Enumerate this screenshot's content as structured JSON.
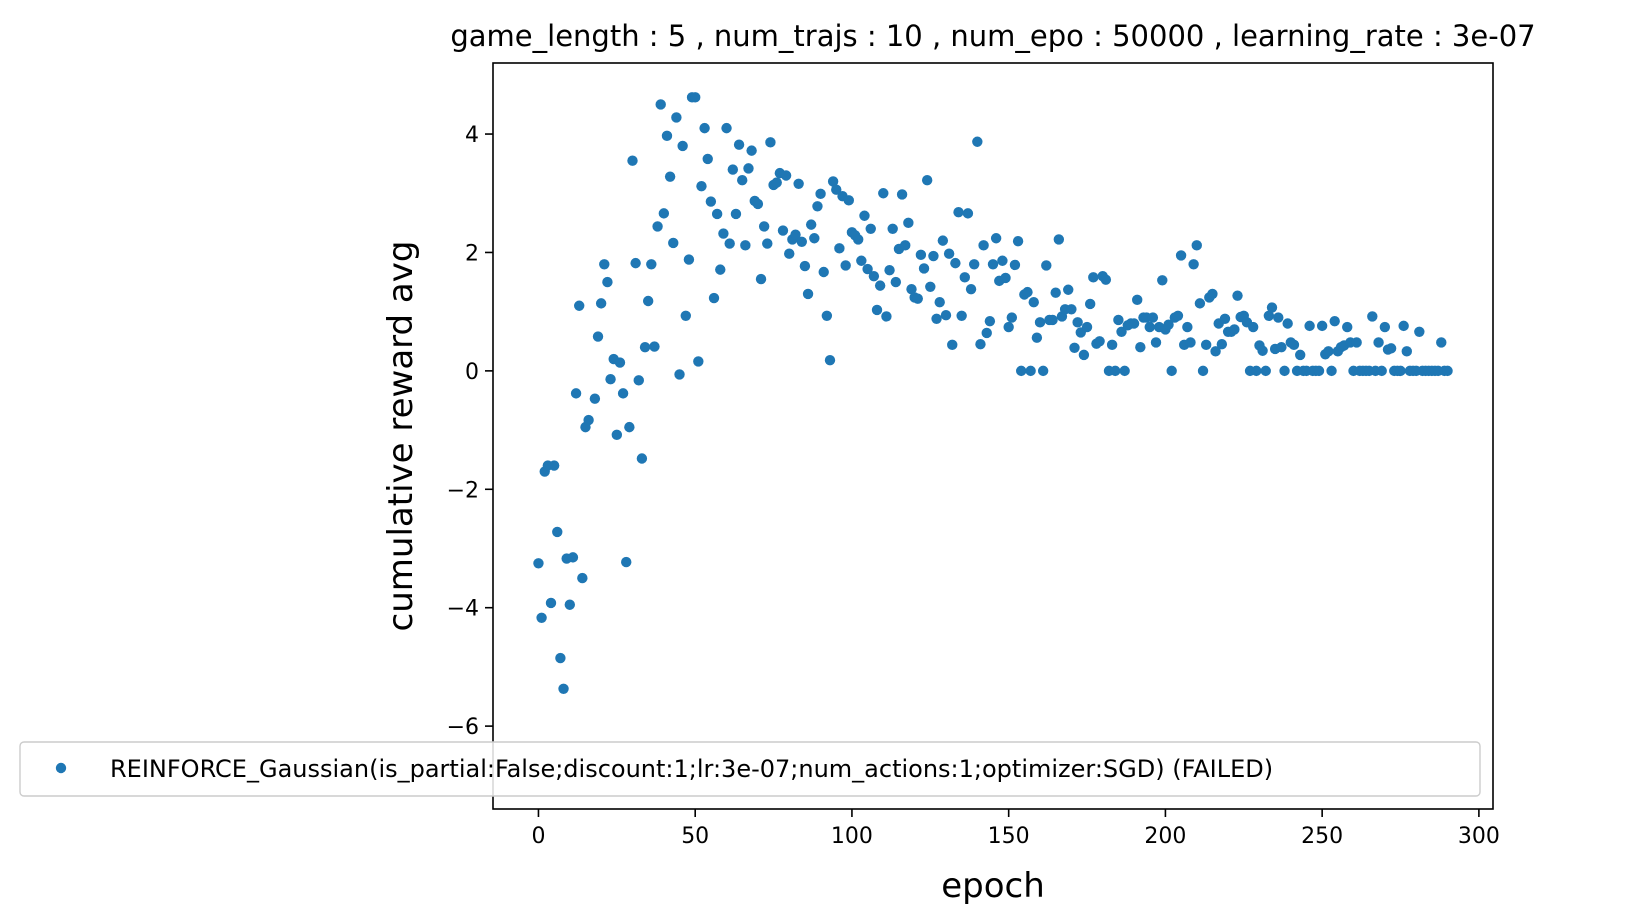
{
  "chart_data": {
    "type": "scatter",
    "title": "game_length : 5 , num_trajs : 10 , num_epo : 50000 , learning_rate : 3e-07",
    "xlabel": "epoch",
    "ylabel": "cumulative reward avg",
    "xlim": [
      -14.5,
      304.5
    ],
    "ylim": [
      -7.4,
      5.2
    ],
    "xticks": [
      0,
      50,
      100,
      150,
      200,
      250,
      300
    ],
    "yticks": [
      -6,
      -4,
      -2,
      0,
      2,
      4
    ],
    "xtick_labels": [
      "0",
      "50",
      "100",
      "150",
      "200",
      "250",
      "300"
    ],
    "ytick_labels": [
      "−6",
      "−4",
      "−2",
      "0",
      "2",
      "4"
    ],
    "grid": false,
    "legend_position": "lower-left",
    "series": [
      {
        "name": "REINFORCE_Gaussian(is_partial:False;discount:1;lr:3e-07;num_actions:1;optimizer:SGD) (FAILED)",
        "color": "#1f77b4",
        "points": [
          [
            0,
            -3.25
          ],
          [
            1,
            -4.17
          ],
          [
            2,
            -1.7
          ],
          [
            3,
            -1.6
          ],
          [
            4,
            -3.92
          ],
          [
            5,
            -1.6
          ],
          [
            6,
            -2.72
          ],
          [
            7,
            -4.85
          ],
          [
            8,
            -5.37
          ],
          [
            9,
            -3.17
          ],
          [
            10,
            -3.95
          ],
          [
            11,
            -3.15
          ],
          [
            12,
            -0.38
          ],
          [
            13,
            1.1
          ],
          [
            14,
            -3.5
          ],
          [
            15,
            -0.95
          ],
          [
            16,
            -0.83
          ],
          [
            18,
            -0.47
          ],
          [
            19,
            0.58
          ],
          [
            20,
            1.14
          ],
          [
            21,
            1.8
          ],
          [
            22,
            1.5
          ],
          [
            23,
            -0.14
          ],
          [
            24,
            0.2
          ],
          [
            25,
            -1.08
          ],
          [
            26,
            0.14
          ],
          [
            27,
            -0.38
          ],
          [
            28,
            -3.23
          ],
          [
            29,
            -0.95
          ],
          [
            30,
            3.55
          ],
          [
            31,
            1.82
          ],
          [
            32,
            -0.16
          ],
          [
            33,
            -1.48
          ],
          [
            34,
            0.4
          ],
          [
            35,
            1.18
          ],
          [
            36,
            1.8
          ],
          [
            37,
            0.41
          ],
          [
            38,
            2.44
          ],
          [
            39,
            4.5
          ],
          [
            40,
            2.66
          ],
          [
            41,
            3.97
          ],
          [
            42,
            3.28
          ],
          [
            43,
            2.16
          ],
          [
            44,
            4.28
          ],
          [
            45,
            -0.06
          ],
          [
            46,
            3.8
          ],
          [
            47,
            0.93
          ],
          [
            48,
            1.88
          ],
          [
            49,
            4.62
          ],
          [
            50,
            4.62
          ],
          [
            51,
            0.16
          ],
          [
            52,
            3.12
          ],
          [
            53,
            4.1
          ],
          [
            54,
            3.58
          ],
          [
            55,
            2.86
          ],
          [
            56,
            1.23
          ],
          [
            57,
            2.65
          ],
          [
            58,
            1.71
          ],
          [
            59,
            2.32
          ],
          [
            60,
            4.1
          ],
          [
            61,
            2.15
          ],
          [
            62,
            3.4
          ],
          [
            63,
            2.65
          ],
          [
            64,
            3.82
          ],
          [
            65,
            3.22
          ],
          [
            66,
            2.12
          ],
          [
            67,
            3.42
          ],
          [
            68,
            3.72
          ],
          [
            69,
            2.87
          ],
          [
            70,
            2.82
          ],
          [
            71,
            1.55
          ],
          [
            72,
            2.44
          ],
          [
            73,
            2.15
          ],
          [
            74,
            3.86
          ],
          [
            75,
            3.14
          ],
          [
            76,
            3.18
          ],
          [
            77,
            3.34
          ],
          [
            78,
            2.37
          ],
          [
            79,
            3.3
          ],
          [
            80,
            1.98
          ],
          [
            81,
            2.22
          ],
          [
            82,
            2.3
          ],
          [
            83,
            3.16
          ],
          [
            84,
            2.18
          ],
          [
            85,
            1.77
          ],
          [
            86,
            1.3
          ],
          [
            87,
            2.47
          ],
          [
            88,
            2.24
          ],
          [
            89,
            2.78
          ],
          [
            90,
            2.99
          ],
          [
            91,
            1.67
          ],
          [
            92,
            0.93
          ],
          [
            93,
            0.18
          ],
          [
            94,
            3.2
          ],
          [
            95,
            3.06
          ],
          [
            96,
            2.07
          ],
          [
            97,
            2.95
          ],
          [
            98,
            1.78
          ],
          [
            99,
            2.88
          ],
          [
            100,
            2.34
          ],
          [
            101,
            2.29
          ],
          [
            102,
            2.22
          ],
          [
            103,
            1.86
          ],
          [
            104,
            2.62
          ],
          [
            105,
            1.72
          ],
          [
            106,
            2.4
          ],
          [
            107,
            1.6
          ],
          [
            108,
            1.03
          ],
          [
            109,
            1.44
          ],
          [
            110,
            3.0
          ],
          [
            111,
            0.92
          ],
          [
            112,
            1.7
          ],
          [
            113,
            2.4
          ],
          [
            114,
            1.5
          ],
          [
            115,
            2.06
          ],
          [
            116,
            2.98
          ],
          [
            117,
            2.12
          ],
          [
            118,
            2.5
          ],
          [
            119,
            1.38
          ],
          [
            120,
            1.24
          ],
          [
            121,
            1.22
          ],
          [
            122,
            1.96
          ],
          [
            123,
            1.73
          ],
          [
            124,
            3.22
          ],
          [
            125,
            1.42
          ],
          [
            126,
            1.94
          ],
          [
            127,
            0.88
          ],
          [
            128,
            1.16
          ],
          [
            129,
            2.2
          ],
          [
            130,
            0.94
          ],
          [
            131,
            1.98
          ],
          [
            132,
            0.44
          ],
          [
            133,
            1.82
          ],
          [
            134,
            2.68
          ],
          [
            135,
            0.93
          ],
          [
            136,
            1.58
          ],
          [
            137,
            2.66
          ],
          [
            138,
            1.38
          ],
          [
            139,
            1.8
          ],
          [
            140,
            3.87
          ],
          [
            141,
            0.45
          ],
          [
            142,
            2.12
          ],
          [
            143,
            0.64
          ],
          [
            144,
            0.84
          ],
          [
            145,
            1.8
          ],
          [
            146,
            2.24
          ],
          [
            147,
            1.52
          ],
          [
            148,
            1.86
          ],
          [
            149,
            1.57
          ],
          [
            150,
            0.74
          ],
          [
            151,
            0.9
          ],
          [
            152,
            1.79
          ],
          [
            153,
            2.19
          ],
          [
            154,
            0.0
          ],
          [
            155,
            1.29
          ],
          [
            156,
            1.33
          ],
          [
            157,
            0.0
          ],
          [
            158,
            1.16
          ],
          [
            159,
            0.56
          ],
          [
            160,
            0.82
          ],
          [
            161,
            0.0
          ],
          [
            162,
            1.78
          ],
          [
            163,
            0.86
          ],
          [
            164,
            0.86
          ],
          [
            165,
            1.32
          ],
          [
            166,
            2.22
          ],
          [
            167,
            0.92
          ],
          [
            168,
            1.04
          ],
          [
            169,
            1.37
          ],
          [
            170,
            1.04
          ],
          [
            171,
            0.39
          ],
          [
            172,
            0.82
          ],
          [
            173,
            0.65
          ],
          [
            174,
            0.27
          ],
          [
            175,
            0.74
          ],
          [
            176,
            1.13
          ],
          [
            177,
            1.58
          ],
          [
            178,
            0.46
          ],
          [
            179,
            0.5
          ],
          [
            180,
            1.6
          ],
          [
            181,
            1.54
          ],
          [
            182,
            0.0
          ],
          [
            183,
            0.44
          ],
          [
            184,
            0.0
          ],
          [
            185,
            0.86
          ],
          [
            186,
            0.66
          ],
          [
            187,
            0.0
          ],
          [
            188,
            0.77
          ],
          [
            189,
            0.8
          ],
          [
            190,
            0.8
          ],
          [
            191,
            1.2
          ],
          [
            192,
            0.4
          ],
          [
            193,
            0.9
          ],
          [
            194,
            0.9
          ],
          [
            195,
            0.74
          ],
          [
            196,
            0.9
          ],
          [
            197,
            0.48
          ],
          [
            198,
            0.74
          ],
          [
            199,
            1.53
          ],
          [
            200,
            0.7
          ],
          [
            201,
            0.78
          ],
          [
            202,
            0.0
          ],
          [
            203,
            0.9
          ],
          [
            204,
            0.93
          ],
          [
            205,
            1.95
          ],
          [
            206,
            0.44
          ],
          [
            207,
            0.74
          ],
          [
            208,
            0.48
          ],
          [
            209,
            1.8
          ],
          [
            210,
            2.12
          ],
          [
            211,
            1.14
          ],
          [
            212,
            0.0
          ],
          [
            213,
            0.44
          ],
          [
            214,
            1.24
          ],
          [
            215,
            1.3
          ],
          [
            216,
            0.33
          ],
          [
            217,
            0.8
          ],
          [
            218,
            0.45
          ],
          [
            219,
            0.88
          ],
          [
            220,
            0.66
          ],
          [
            221,
            0.66
          ],
          [
            222,
            0.7
          ],
          [
            223,
            1.27
          ],
          [
            224,
            0.91
          ],
          [
            225,
            0.93
          ],
          [
            226,
            0.82
          ],
          [
            227,
            0.0
          ],
          [
            228,
            0.74
          ],
          [
            229,
            0.0
          ],
          [
            230,
            0.43
          ],
          [
            231,
            0.34
          ],
          [
            232,
            0.0
          ],
          [
            233,
            0.93
          ],
          [
            234,
            1.07
          ],
          [
            235,
            0.37
          ],
          [
            236,
            0.9
          ],
          [
            237,
            0.4
          ],
          [
            238,
            0.0
          ],
          [
            239,
            0.8
          ],
          [
            240,
            0.48
          ],
          [
            241,
            0.44
          ],
          [
            242,
            0.0
          ],
          [
            243,
            0.27
          ],
          [
            244,
            0.0
          ],
          [
            245,
            0.0
          ],
          [
            246,
            0.76
          ],
          [
            247,
            0.0
          ],
          [
            248,
            0.0
          ],
          [
            249,
            0.0
          ],
          [
            250,
            0.76
          ],
          [
            251,
            0.28
          ],
          [
            252,
            0.33
          ],
          [
            253,
            0.0
          ],
          [
            254,
            0.84
          ],
          [
            255,
            0.33
          ],
          [
            256,
            0.4
          ],
          [
            257,
            0.43
          ],
          [
            258,
            0.74
          ],
          [
            259,
            0.48
          ],
          [
            260,
            0.0
          ],
          [
            261,
            0.48
          ],
          [
            262,
            0.0
          ],
          [
            263,
            0.0
          ],
          [
            264,
            0.0
          ],
          [
            265,
            0.0
          ],
          [
            266,
            0.92
          ],
          [
            267,
            0.0
          ],
          [
            268,
            0.48
          ],
          [
            269,
            0.0
          ],
          [
            270,
            0.74
          ],
          [
            271,
            0.36
          ],
          [
            272,
            0.38
          ],
          [
            273,
            0.0
          ],
          [
            274,
            0.0
          ],
          [
            275,
            0.0
          ],
          [
            276,
            0.76
          ],
          [
            277,
            0.33
          ],
          [
            278,
            0.0
          ],
          [
            279,
            0.0
          ],
          [
            280,
            0.0
          ],
          [
            281,
            0.66
          ],
          [
            282,
            0.0
          ],
          [
            283,
            0.0
          ],
          [
            284,
            0.0
          ],
          [
            285,
            0.0
          ],
          [
            286,
            0.0
          ],
          [
            287,
            0.0
          ],
          [
            288,
            0.48
          ],
          [
            289,
            0.0
          ],
          [
            290,
            0.0
          ]
        ]
      }
    ]
  }
}
